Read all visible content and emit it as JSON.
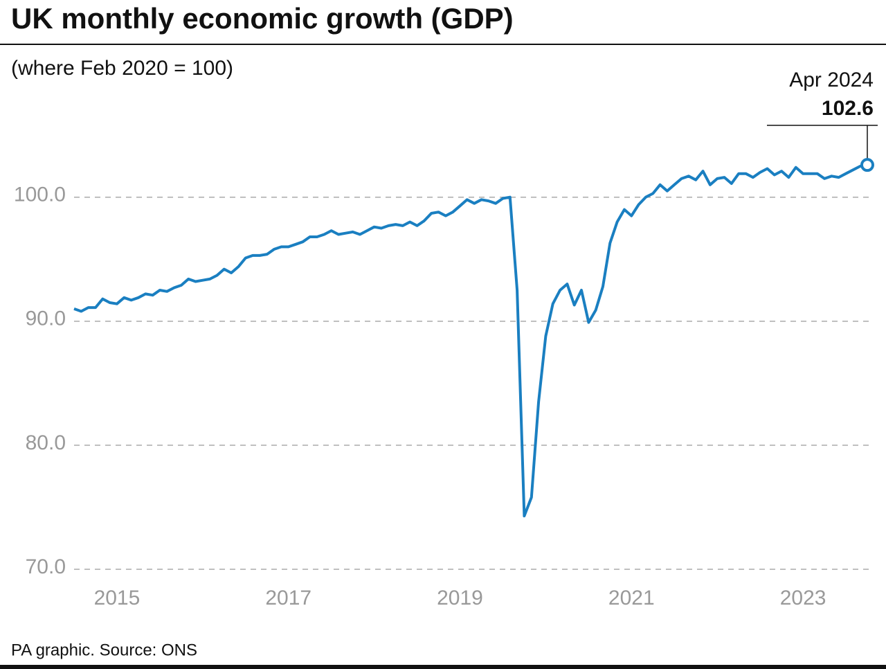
{
  "chart_data": {
    "type": "line",
    "title": "UK monthly economic growth (GDP)",
    "subtitle": "(where Feb 2020 = 100)",
    "source": "PA graphic. Source: ONS",
    "annotation": "Apr 2024",
    "categories": [
      null,
      null,
      null,
      null,
      null,
      null,
      "2015",
      null,
      null,
      null,
      null,
      null,
      null,
      null,
      null,
      null,
      null,
      null,
      null,
      null,
      null,
      null,
      null,
      null,
      null,
      null,
      null,
      null,
      null,
      null,
      "2017",
      null,
      null,
      null,
      null,
      null,
      null,
      null,
      null,
      null,
      null,
      null,
      null,
      null,
      null,
      null,
      null,
      null,
      null,
      null,
      null,
      null,
      null,
      null,
      "2019",
      null,
      null,
      null,
      null,
      null,
      null,
      null,
      null,
      null,
      null,
      null,
      null,
      null,
      null,
      null,
      null,
      null,
      null,
      null,
      null,
      null,
      null,
      null,
      "2021",
      null,
      null,
      null,
      null,
      null,
      null,
      null,
      null,
      null,
      null,
      null,
      null,
      null,
      null,
      null,
      null,
      null,
      null,
      null,
      null,
      null,
      null,
      null,
      "2023",
      null,
      null,
      null,
      null,
      null,
      null,
      null,
      null,
      null
    ],
    "values": [
      91.0,
      90.8,
      91.1,
      91.1,
      91.8,
      91.5,
      91.4,
      91.9,
      91.7,
      91.9,
      92.2,
      92.1,
      92.5,
      92.4,
      92.7,
      92.9,
      93.4,
      93.2,
      93.3,
      93.4,
      93.7,
      94.2,
      93.9,
      94.4,
      95.1,
      95.3,
      95.3,
      95.4,
      95.8,
      96.0,
      96.0,
      96.2,
      96.4,
      96.8,
      96.8,
      97.0,
      97.3,
      97.0,
      97.1,
      97.2,
      97.0,
      97.3,
      97.6,
      97.5,
      97.7,
      97.8,
      97.7,
      98.0,
      97.7,
      98.1,
      98.7,
      98.8,
      98.5,
      98.8,
      99.3,
      99.8,
      99.5,
      99.8,
      99.7,
      99.5,
      99.9,
      100.0,
      92.5,
      74.3,
      75.8,
      83.5,
      88.8,
      91.4,
      92.5,
      93.0,
      91.3,
      92.5,
      89.9,
      90.9,
      92.8,
      96.3,
      98.0,
      99.0,
      98.5,
      99.4,
      100.0,
      100.3,
      101.0,
      100.5,
      101.0,
      101.5,
      101.7,
      101.4,
      102.1,
      101.0,
      101.5,
      101.6,
      101.1,
      101.9,
      101.9,
      101.6,
      102.0,
      102.3,
      101.8,
      102.1,
      101.6,
      102.4,
      101.9,
      101.9,
      101.9,
      101.5,
      101.7,
      101.6,
      101.9,
      102.2,
      102.5,
      102.6
    ],
    "color": "#1a7fc1",
    "ylim": [
      70,
      103
    ],
    "yticks": [
      {
        "value": 70,
        "label": "70.0"
      },
      {
        "value": 80,
        "label": "80.0"
      },
      {
        "value": 90,
        "label": "90.0"
      },
      {
        "value": 100,
        "label": "100.0"
      }
    ],
    "grid": true
  }
}
